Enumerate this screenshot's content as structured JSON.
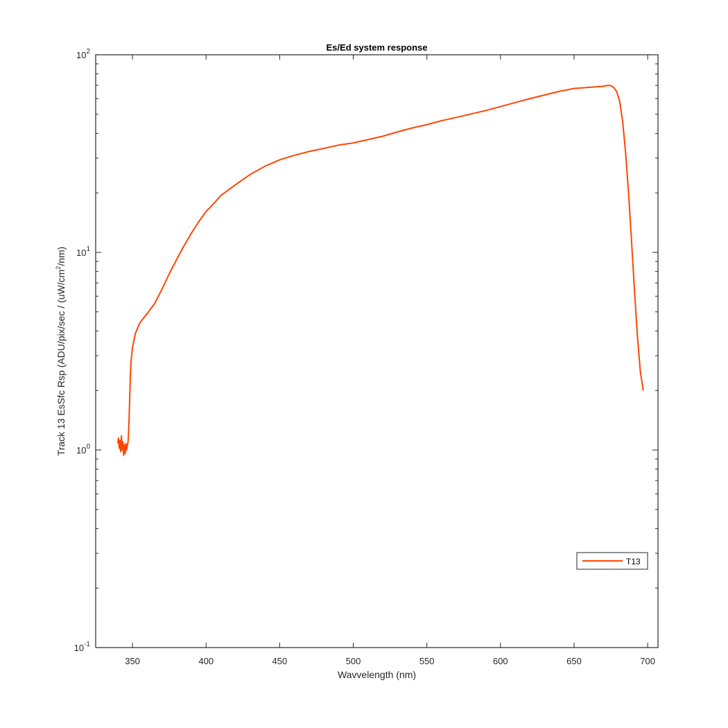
{
  "chart_data": {
    "type": "line",
    "title": "Es/Ed system response",
    "xlabel": "Wavvelength (nm)",
    "ylabel": {
      "before_sup": "Track 13 EsSfc Rsp (ADU/pix/sec / (uW/cm",
      "sup": "2",
      "after_sup": "/nm)"
    },
    "xlim": [
      325,
      707
    ],
    "ylim": [
      0.1,
      100
    ],
    "yscale": "log",
    "grid": false,
    "legend_position": "lower-right",
    "x_ticks": [
      {
        "value": 350,
        "label": "350"
      },
      {
        "value": 400,
        "label": "400"
      },
      {
        "value": 450,
        "label": "450"
      },
      {
        "value": 500,
        "label": "500"
      },
      {
        "value": 550,
        "label": "550"
      },
      {
        "value": 600,
        "label": "600"
      },
      {
        "value": 650,
        "label": "650"
      },
      {
        "value": 700,
        "label": "700"
      }
    ],
    "y_ticks": [
      {
        "value": 0.1,
        "base": "10",
        "exp": "-1"
      },
      {
        "value": 1,
        "base": "10",
        "exp": "0"
      },
      {
        "value": 10,
        "base": "10",
        "exp": "1"
      },
      {
        "value": 100,
        "base": "10",
        "exp": "2"
      }
    ],
    "series": [
      {
        "name": "T13",
        "color": "#ff4500",
        "points": [
          [
            340,
            1.08
          ],
          [
            340.5,
            1.15
          ],
          [
            341,
            1.02
          ],
          [
            341.5,
            1.12
          ],
          [
            342,
            0.98
          ],
          [
            342.5,
            1.18
          ],
          [
            343,
            1.0
          ],
          [
            343.5,
            1.1
          ],
          [
            344,
            0.94
          ],
          [
            344.5,
            1.06
          ],
          [
            345,
            0.96
          ],
          [
            345.5,
            1.08
          ],
          [
            346,
            1.0
          ],
          [
            346.5,
            1.05
          ],
          [
            347,
            1.1
          ],
          [
            347.5,
            1.3
          ],
          [
            348,
            1.7
          ],
          [
            348.5,
            2.3
          ],
          [
            349,
            2.8
          ],
          [
            350,
            3.3
          ],
          [
            352,
            3.9
          ],
          [
            355,
            4.4
          ],
          [
            360,
            4.9
          ],
          [
            365,
            5.5
          ],
          [
            370,
            6.5
          ],
          [
            375,
            7.8
          ],
          [
            380,
            9.2
          ],
          [
            385,
            10.8
          ],
          [
            390,
            12.5
          ],
          [
            395,
            14.3
          ],
          [
            400,
            16.1
          ],
          [
            405,
            17.6
          ],
          [
            410,
            19.4
          ],
          [
            420,
            22.0
          ],
          [
            430,
            24.8
          ],
          [
            440,
            27.3
          ],
          [
            450,
            29.4
          ],
          [
            460,
            31.0
          ],
          [
            470,
            32.4
          ],
          [
            480,
            33.6
          ],
          [
            490,
            34.9
          ],
          [
            500,
            35.8
          ],
          [
            510,
            37.2
          ],
          [
            520,
            38.7
          ],
          [
            530,
            40.7
          ],
          [
            540,
            42.6
          ],
          [
            550,
            44.3
          ],
          [
            560,
            46.4
          ],
          [
            570,
            48.2
          ],
          [
            580,
            50.2
          ],
          [
            590,
            52.2
          ],
          [
            600,
            54.7
          ],
          [
            610,
            57.3
          ],
          [
            620,
            60.0
          ],
          [
            630,
            62.6
          ],
          [
            640,
            65.3
          ],
          [
            650,
            67.5
          ],
          [
            660,
            68.4
          ],
          [
            665,
            68.8
          ],
          [
            670,
            69.3
          ],
          [
            673,
            70.0
          ],
          [
            675,
            69.8
          ],
          [
            677,
            68.3
          ],
          [
            679,
            65.0
          ],
          [
            681,
            58.0
          ],
          [
            683,
            46.0
          ],
          [
            685,
            32.0
          ],
          [
            687,
            20.0
          ],
          [
            689,
            11.5
          ],
          [
            691,
            6.5
          ],
          [
            693,
            3.8
          ],
          [
            695,
            2.5
          ],
          [
            697,
            2.0
          ]
        ]
      }
    ]
  }
}
